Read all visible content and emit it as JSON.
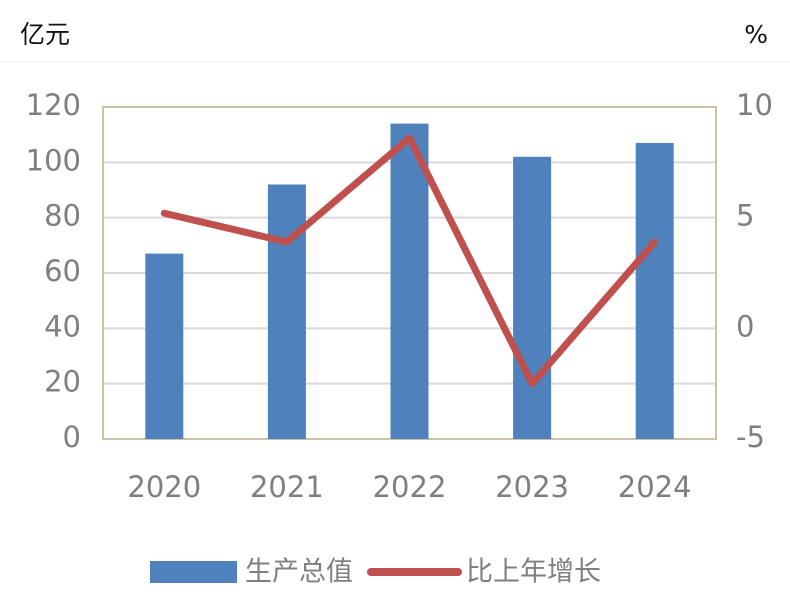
{
  "chart_data": {
    "type": "bar",
    "y_unit": "亿元",
    "y2_unit": "%",
    "categories": [
      "2020",
      "2021",
      "2022",
      "2023",
      "2024"
    ],
    "series": [
      {
        "name": "生产总值",
        "type": "bar",
        "color": "#4f81bd",
        "values": [
          67,
          92,
          114,
          102,
          107
        ]
      },
      {
        "name": "比上年增长",
        "type": "line",
        "axis": "y2",
        "color": "#c0504d",
        "values": [
          5.2,
          3.9,
          8.6,
          -2.5,
          3.9
        ]
      }
    ],
    "ylim": [
      0,
      120
    ],
    "yticks": [
      0,
      20,
      40,
      60,
      80,
      100,
      120
    ],
    "y2lim": [
      -5,
      10
    ],
    "y2ticks": [
      -5,
      0,
      5,
      10
    ],
    "grid": true,
    "legend": "bottom"
  }
}
